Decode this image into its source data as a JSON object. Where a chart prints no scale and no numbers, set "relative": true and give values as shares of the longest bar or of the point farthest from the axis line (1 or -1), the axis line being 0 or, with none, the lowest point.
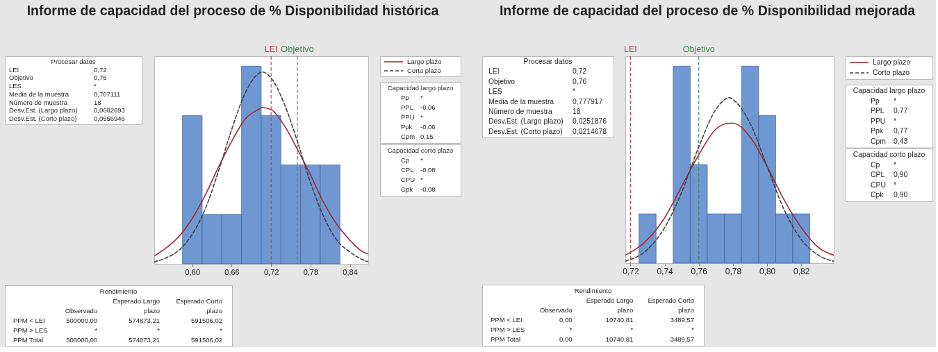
{
  "chart_data": [
    {
      "type": "histogram",
      "title": "Informe de capacidad del proceso de % Disponibilidad histórica",
      "relative": true,
      "legend": "top right",
      "xlim": [
        0.542,
        0.868
      ],
      "xticks": [
        {
          "value": 0.6,
          "label": "0,60"
        },
        {
          "value": 0.66,
          "label": "0,66"
        },
        {
          "value": 0.72,
          "label": "0,72"
        },
        {
          "value": 0.78,
          "label": "0,78"
        },
        {
          "value": 0.84,
          "label": "0,84"
        }
      ],
      "series": [
        {
          "type": "histogram",
          "color": "#6f98d3",
          "bins": [
            0.585,
            0.615,
            0.645,
            0.675,
            0.705,
            0.735,
            0.765,
            0.795,
            0.825
          ],
          "values": [
            0.75,
            0.25,
            0.25,
            1,
            0.75,
            0.5,
            0.5,
            0.5
          ]
        },
        {
          "type": "line",
          "name": "Largo plazo",
          "color": "#9e2a35",
          "line_style": "solid",
          "x": [
            0.542,
            0.56,
            0.58,
            0.6,
            0.62,
            0.64,
            0.66,
            0.68,
            0.7,
            0.707,
            0.72,
            0.74,
            0.76,
            0.78,
            0.8,
            0.82,
            0.84,
            0.86,
            0.868
          ],
          "values": [
            0.04,
            0.08,
            0.14,
            0.23,
            0.35,
            0.49,
            0.62,
            0.73,
            0.78,
            0.79,
            0.78,
            0.7,
            0.58,
            0.45,
            0.31,
            0.2,
            0.12,
            0.06,
            0.05
          ]
        },
        {
          "type": "line",
          "name": "Corto plazo",
          "color": "#404040",
          "line_style": "dashed",
          "x": [
            0.542,
            0.56,
            0.58,
            0.6,
            0.62,
            0.64,
            0.66,
            0.68,
            0.7,
            0.707,
            0.72,
            0.74,
            0.76,
            0.78,
            0.8,
            0.82,
            0.84,
            0.86,
            0.868
          ],
          "values": [
            0.01,
            0.03,
            0.07,
            0.15,
            0.28,
            0.47,
            0.68,
            0.86,
            0.96,
            0.97,
            0.94,
            0.81,
            0.62,
            0.41,
            0.24,
            0.12,
            0.06,
            0.02,
            0.01
          ]
        }
      ],
      "ref_lines": [
        {
          "axis": "x",
          "value": 0.72,
          "label": "LEI",
          "color": "#b23a44",
          "line_style": "dashed"
        },
        {
          "axis": "x",
          "value": 0.76,
          "label": "Objetivo",
          "color": "#3a8a4a",
          "line_style": "dashed"
        }
      ]
    },
    {
      "type": "other",
      "title": "Procesar datos",
      "categories": [
        "LEI",
        "Objetivo",
        "LES",
        "Media de la muestra",
        "Número de muestra",
        "Desv.Est. (Largo plazo)",
        "Desv.Est. (Corto plazo)"
      ],
      "value_labels": [
        "0,72",
        "0,76",
        "*",
        "0,707111",
        "18",
        "0,0682693",
        "0,0556946"
      ]
    },
    {
      "type": "other",
      "title": "Capacidad largo plazo",
      "categories": [
        "Pp",
        "PPL",
        "PPU",
        "Ppk",
        "Cpm"
      ],
      "value_labels": [
        "*",
        "-0,06",
        "*",
        "-0,06",
        "0,15"
      ]
    },
    {
      "type": "other",
      "title": "Capacidad corto plazo",
      "categories": [
        "Cp",
        "CPL",
        "CPU",
        "Cpk"
      ],
      "value_labels": [
        "*",
        "-0,08",
        "*",
        "-0,08"
      ]
    },
    {
      "type": "other",
      "title": "Rendimiento",
      "categories": [
        "Observado",
        "Esperado Largo plazo",
        "Esperado Corto plazo"
      ],
      "y_categories": [
        "PPM < LEI",
        "PPM > LES",
        "PPM Total"
      ],
      "cell_labels": [
        [
          "500000,00",
          "574873,21",
          "591506,02"
        ],
        [
          "*",
          "*",
          "*"
        ],
        [
          "500000,00",
          "574873,21",
          "591506,02"
        ]
      ]
    },
    {
      "type": "histogram",
      "title": "Informe de capacidad del proceso de % Disponibilidad mejorada",
      "relative": true,
      "legend": "top right",
      "xlim": [
        0.717,
        0.839
      ],
      "xticks": [
        {
          "value": 0.72,
          "label": "0,72"
        },
        {
          "value": 0.74,
          "label": "0,74"
        },
        {
          "value": 0.76,
          "label": "0,76"
        },
        {
          "value": 0.78,
          "label": "0,78"
        },
        {
          "value": 0.8,
          "label": "0,80"
        },
        {
          "value": 0.82,
          "label": "0,82"
        }
      ],
      "series": [
        {
          "type": "histogram",
          "color": "#6f98d3",
          "bins": [
            0.725,
            0.735,
            0.745,
            0.755,
            0.765,
            0.775,
            0.785,
            0.795,
            0.805,
            0.815,
            0.825
          ],
          "values": [
            0.25,
            0,
            1,
            0.5,
            0.25,
            0.25,
            1,
            0.75,
            0.25,
            0.25
          ]
        },
        {
          "type": "line",
          "name": "Largo plazo",
          "color": "#9e2a35",
          "line_style": "solid",
          "x": [
            0.717,
            0.73,
            0.74,
            0.75,
            0.76,
            0.77,
            0.778,
            0.78,
            0.79,
            0.8,
            0.81,
            0.82,
            0.83,
            0.839
          ],
          "values": [
            0.04,
            0.12,
            0.23,
            0.39,
            0.55,
            0.68,
            0.71,
            0.71,
            0.64,
            0.49,
            0.32,
            0.18,
            0.08,
            0.04
          ]
        },
        {
          "type": "line",
          "name": "Corto plazo",
          "color": "#404040",
          "line_style": "dashed",
          "x": [
            0.717,
            0.73,
            0.74,
            0.75,
            0.76,
            0.77,
            0.778,
            0.78,
            0.79,
            0.8,
            0.81,
            0.82,
            0.83,
            0.839
          ],
          "values": [
            0.01,
            0.07,
            0.18,
            0.36,
            0.59,
            0.78,
            0.84,
            0.83,
            0.71,
            0.49,
            0.27,
            0.12,
            0.04,
            0.01
          ]
        }
      ],
      "ref_lines": [
        {
          "axis": "x",
          "value": 0.72,
          "label": "LEI",
          "color": "#b23a44",
          "line_style": "dashed"
        },
        {
          "axis": "x",
          "value": 0.76,
          "label": "Objetivo",
          "color": "#3a8a4a",
          "line_style": "dashed"
        }
      ]
    },
    {
      "type": "other",
      "title": "Procesar datos",
      "categories": [
        "LEI",
        "Objetivo",
        "LES",
        "Media de la muestra",
        "Número de muestra",
        "Desv.Est. (Largo plazo)",
        "Desv.Est. (Corto plazo)"
      ],
      "value_labels": [
        "0,72",
        "0,76",
        "*",
        "0,777917",
        "18",
        "0,0251876",
        "0,0214678"
      ]
    },
    {
      "type": "other",
      "title": "Capacidad largo plazo",
      "categories": [
        "Pp",
        "PPL",
        "PPU",
        "Ppk",
        "Cpm"
      ],
      "value_labels": [
        "*",
        "0,77",
        "*",
        "0,77",
        "0,43"
      ]
    },
    {
      "type": "other",
      "title": "Capacidad corto plazo",
      "categories": [
        "Cp",
        "CPL",
        "CPU",
        "Cpk"
      ],
      "value_labels": [
        "*",
        "0,90",
        "*",
        "0,90"
      ]
    },
    {
      "type": "other",
      "title": "Rendimiento",
      "categories": [
        "Observado",
        "Esperado Largo plazo",
        "Esperado Corto plazo"
      ],
      "y_categories": [
        "PPM < LEI",
        "PPM > LES",
        "PPM Total"
      ],
      "cell_labels": [
        [
          "0,00",
          "10740,81",
          "3489,57"
        ],
        [
          "*",
          "*",
          "*"
        ],
        [
          "0,00",
          "10740,81",
          "3489,57"
        ]
      ]
    }
  ]
}
